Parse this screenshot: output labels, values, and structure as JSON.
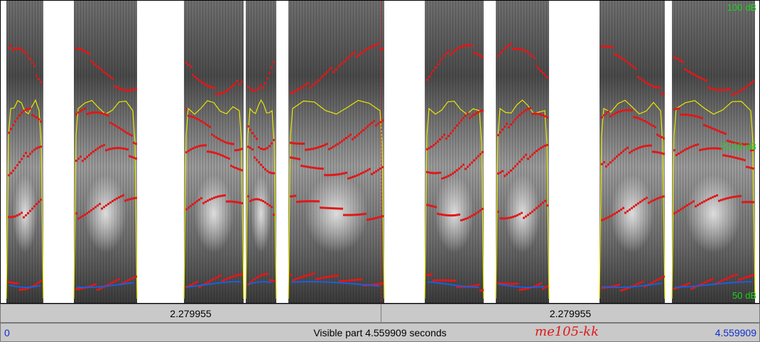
{
  "spectrogram": {
    "db_scale": {
      "top": "100 dB",
      "middle": "75.68 dB",
      "bottom": "50 dB"
    },
    "colors": {
      "formant": "#e01818",
      "pitch": "#1a5fe0",
      "intensity": "#e8e800",
      "db_label": "#20d020",
      "cursor": "#d02020"
    },
    "cursor_time_s": 2.279955
  },
  "selection_bar": {
    "left_duration": "2.279955",
    "right_duration": "2.279955"
  },
  "status_bar": {
    "start_time": "0",
    "visible_text": "Visible part 4.559909 seconds",
    "end_time": "4.559909",
    "file_name": "me105-kk"
  }
}
